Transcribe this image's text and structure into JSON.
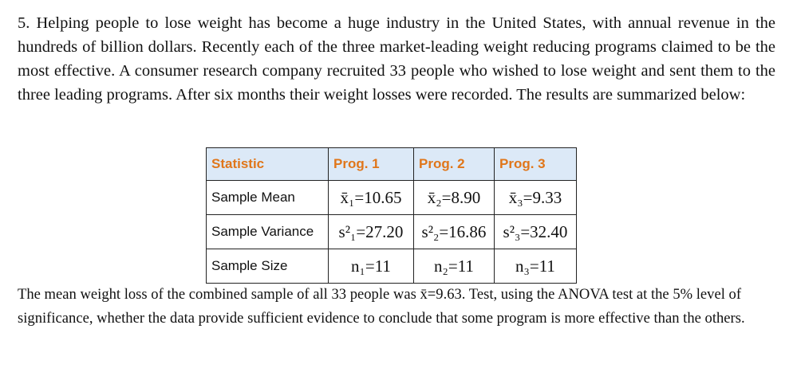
{
  "problem": {
    "intro": "5. Helping people to lose weight has become a huge industry in the United States, with annual revenue in the hundreds of billion dollars. Recently each of the three market-leading weight reducing programs claimed to be the most effective. A consumer research company recruited 33 people who wished to lose weight and sent them to the three leading programs. After six months their weight losses were recorded. The results are summarized below:",
    "conclusion": "The mean weight loss of the combined sample of all 33 people was x̄=9.63. Test, using the ANOVA test at the 5% level of significance, whether the data provide sufficient evidence to conclude that some program is more effective than the others."
  },
  "table": {
    "header": [
      "Statistic",
      "Prog. 1",
      "Prog. 2",
      "Prog. 3"
    ],
    "rows": [
      {
        "label": "Sample Mean",
        "values": [
          "x̄₁=10.65",
          "x̄₂=8.90",
          "x̄₃=9.33"
        ]
      },
      {
        "label": "Sample Variance",
        "values": [
          "s²₁=27.20",
          "s²₂=16.86",
          "s²₃=32.40"
        ]
      },
      {
        "label": "Sample Size",
        "values": [
          "n₁=11",
          "n₂=11",
          "n₃=11"
        ]
      }
    ]
  },
  "colors": {
    "header_bg": "#dce9f7",
    "header_text": "#e0761a"
  }
}
